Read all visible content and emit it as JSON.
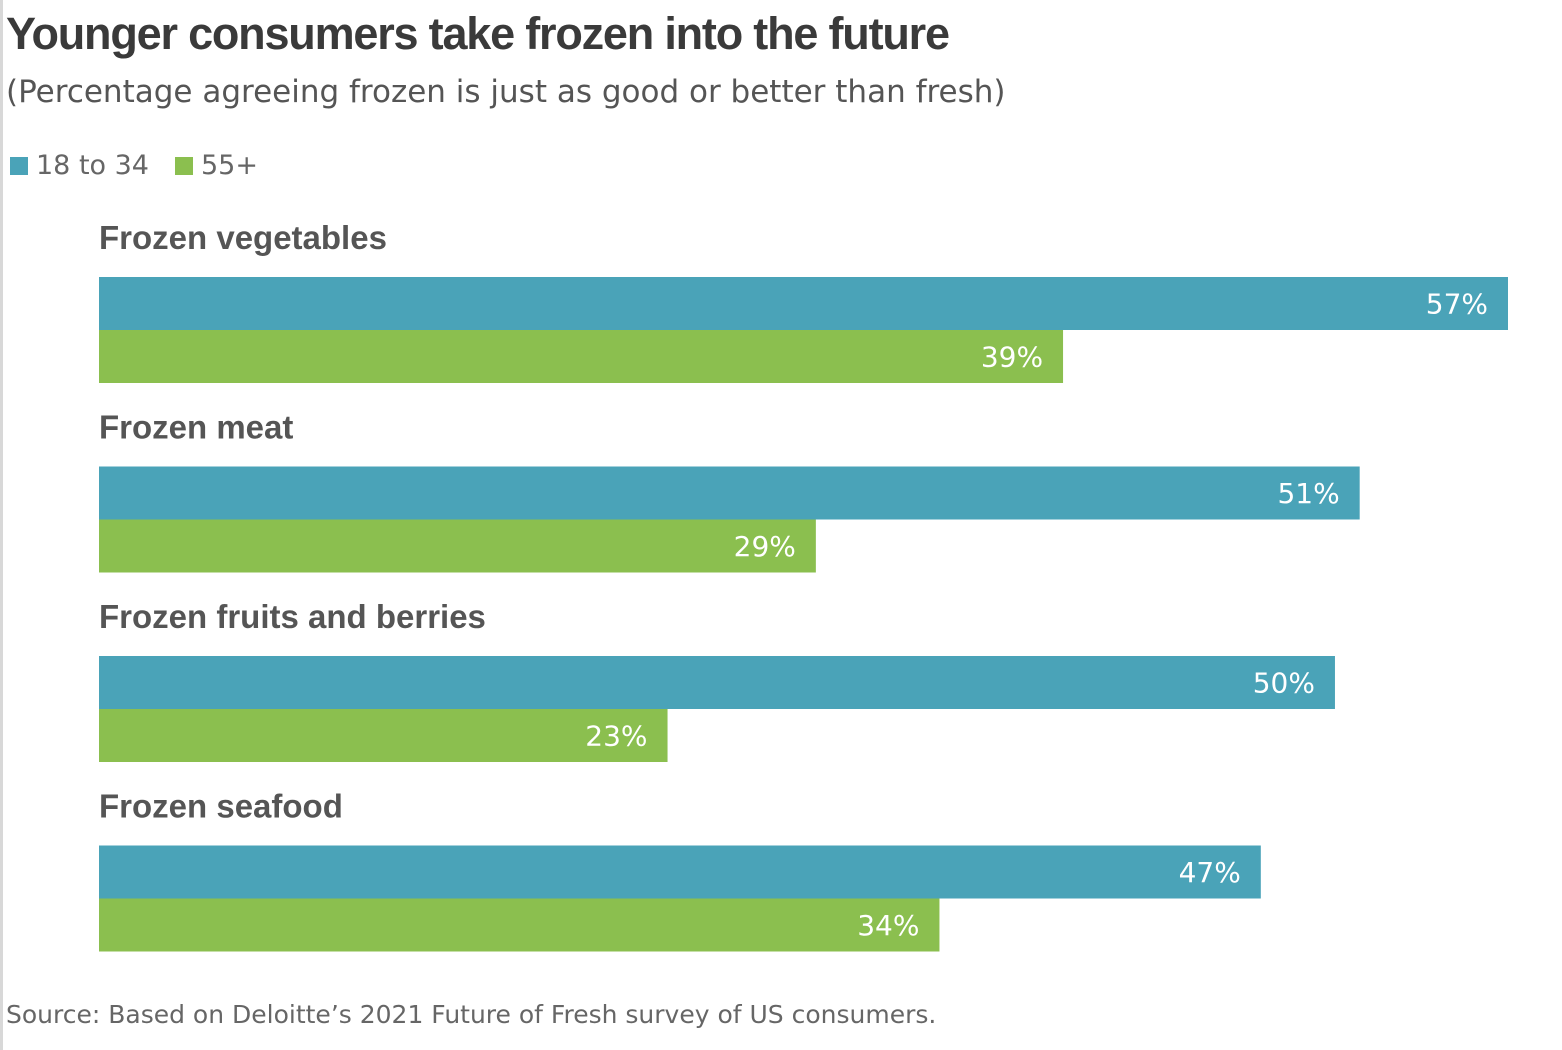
{
  "chart_data": {
    "type": "bar",
    "orientation": "horizontal",
    "title": "Younger consumers take frozen into the future",
    "subtitle": "(Percentage agreeing frozen is just as good or better than fresh)",
    "categories": [
      "Frozen vegetables",
      "Frozen meat",
      "Frozen fruits and berries",
      "Frozen seafood"
    ],
    "series": [
      {
        "name": "18 to 34",
        "values": [
          57,
          51,
          50,
          47
        ],
        "color": "#4aa3b8"
      },
      {
        "name": "55+",
        "values": [
          39,
          29,
          23,
          34
        ],
        "color": "#8bbf4f"
      }
    ],
    "value_suffix": "%",
    "xlim": [
      0,
      57
    ],
    "grid": false,
    "legend_position": "top-left",
    "source": "Source: Based on Deloitte’s 2021 Future of Fresh survey of US consumers."
  }
}
